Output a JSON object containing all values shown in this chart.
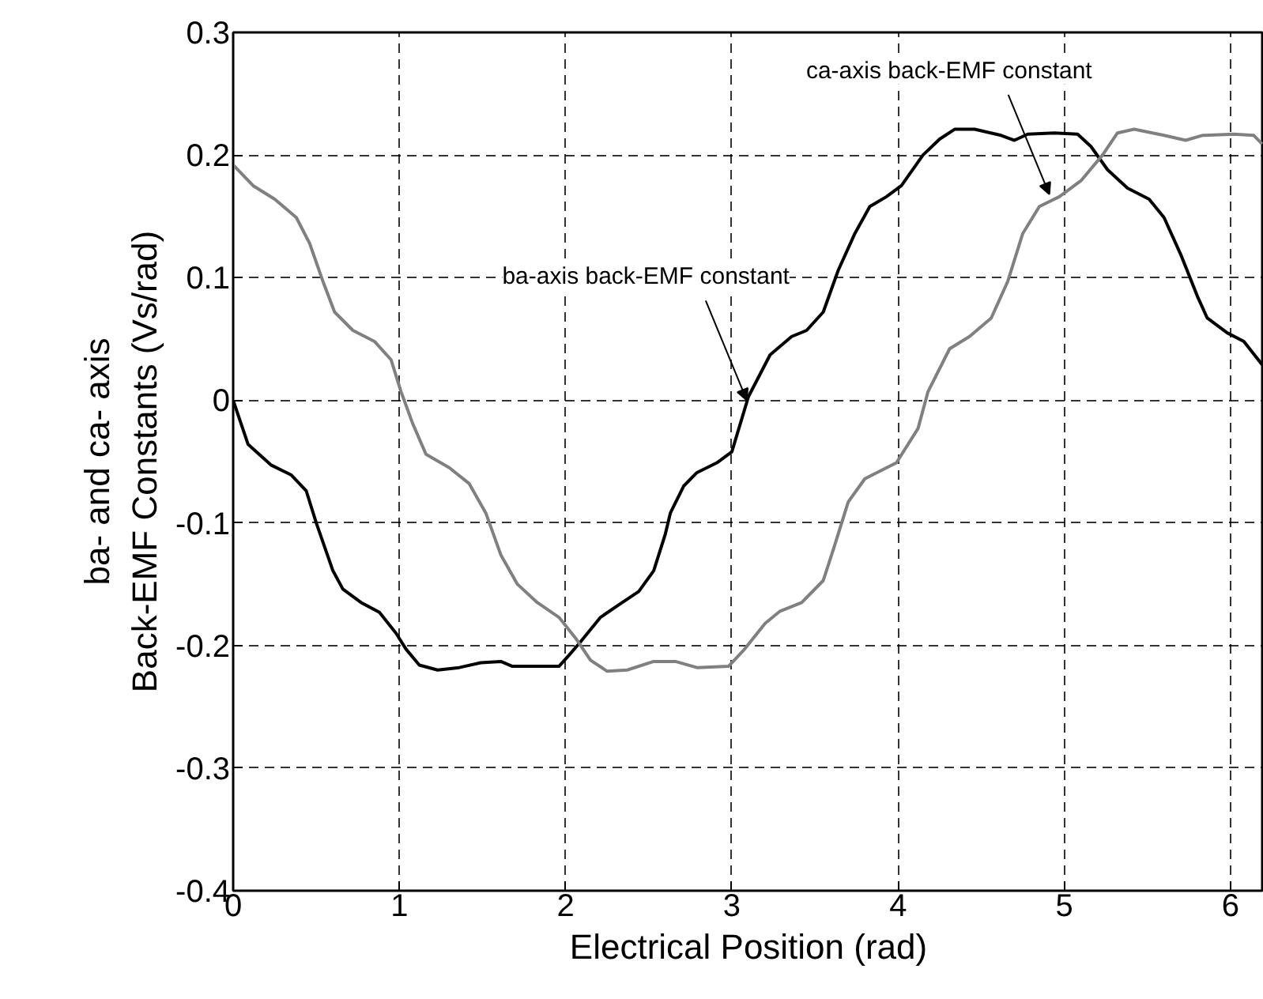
{
  "chart_data": {
    "type": "line",
    "xlabel": "Electrical Position (rad)",
    "ylabel": "ba- and ca- axis\nBack-EMF Constants (Vs/rad)",
    "xlim": [
      0,
      6.2
    ],
    "ylim": [
      -0.4,
      0.3
    ],
    "xticks": [
      0,
      1,
      2,
      3,
      4,
      5,
      6
    ],
    "yticks": [
      -0.4,
      -0.3,
      -0.2,
      -0.1,
      0,
      0.1,
      0.2,
      0.3
    ],
    "grid": true,
    "marker": "none",
    "line_style": "solid",
    "series": [
      {
        "color": "#000000",
        "x": [
          0,
          0.09,
          0.23,
          0.35,
          0.44,
          0.5,
          0.6,
          0.66,
          0.77,
          0.88,
          0.98,
          1.04,
          1.12,
          1.23,
          1.36,
          1.49,
          1.61,
          1.68,
          1.96,
          2.02,
          2.09,
          2.21,
          2.34,
          2.44,
          2.53,
          2.6,
          2.63,
          2.71,
          2.79,
          2.91,
          3.0,
          3.1,
          3.23,
          3.36,
          3.45,
          3.55,
          3.64,
          3.74,
          3.83,
          3.93,
          4.02,
          4.15,
          4.25,
          4.34,
          4.46,
          4.62,
          4.7,
          4.78,
          4.94,
          5.08,
          5.16,
          5.26,
          5.38,
          5.51,
          5.6,
          5.7,
          5.8,
          5.86,
          5.98,
          6.08,
          6.19
        ],
        "values": [
          0,
          -0.036,
          -0.053,
          -0.061,
          -0.074,
          -0.1,
          -0.139,
          -0.154,
          -0.165,
          -0.173,
          -0.19,
          -0.203,
          -0.216,
          -0.22,
          -0.218,
          -0.214,
          -0.213,
          -0.217,
          -0.217,
          -0.208,
          -0.197,
          -0.177,
          -0.165,
          -0.156,
          -0.139,
          -0.109,
          -0.092,
          -0.07,
          -0.059,
          -0.051,
          -0.042,
          0.003,
          0.037,
          0.052,
          0.057,
          0.072,
          0.106,
          0.136,
          0.158,
          0.166,
          0.175,
          0.2,
          0.213,
          0.221,
          0.221,
          0.216,
          0.212,
          0.217,
          0.218,
          0.217,
          0.207,
          0.188,
          0.173,
          0.164,
          0.149,
          0.119,
          0.085,
          0.067,
          0.055,
          0.048,
          0.029
        ]
      },
      {
        "color": "#808080",
        "x": [
          0,
          0.12,
          0.25,
          0.38,
          0.46,
          0.54,
          0.61,
          0.72,
          0.85,
          0.95,
          1.01,
          1.08,
          1.16,
          1.3,
          1.42,
          1.52,
          1.61,
          1.71,
          1.83,
          1.96,
          2.06,
          2.15,
          2.25,
          2.37,
          2.53,
          2.66,
          2.79,
          2.98,
          3.07,
          3.2,
          3.29,
          3.42,
          3.55,
          3.61,
          3.7,
          3.8,
          3.99,
          4.12,
          4.18,
          4.31,
          4.43,
          4.56,
          4.66,
          4.75,
          4.85,
          4.97,
          5.1,
          5.23,
          5.32,
          5.42,
          5.6,
          5.73,
          5.83,
          6.02,
          6.14,
          6.19
        ],
        "values": [
          0.192,
          0.175,
          0.164,
          0.149,
          0.128,
          0.097,
          0.072,
          0.057,
          0.048,
          0.033,
          0.007,
          -0.019,
          -0.044,
          -0.055,
          -0.068,
          -0.092,
          -0.126,
          -0.15,
          -0.165,
          -0.177,
          -0.194,
          -0.212,
          -0.221,
          -0.22,
          -0.213,
          -0.213,
          -0.218,
          -0.217,
          -0.204,
          -0.182,
          -0.172,
          -0.165,
          -0.147,
          -0.122,
          -0.083,
          -0.064,
          -0.051,
          -0.023,
          0.007,
          0.042,
          0.052,
          0.067,
          0.097,
          0.136,
          0.158,
          0.166,
          0.179,
          0.2,
          0.218,
          0.221,
          0.216,
          0.212,
          0.216,
          0.217,
          0.216,
          0.209
        ]
      }
    ],
    "annotations": [
      {
        "text": "ba-axis back-EMF constant",
        "x": 3.09,
        "y": 0.0
      },
      {
        "text": "ca-axis back-EMF constant",
        "x": 4.91,
        "y": 0.168
      }
    ]
  }
}
